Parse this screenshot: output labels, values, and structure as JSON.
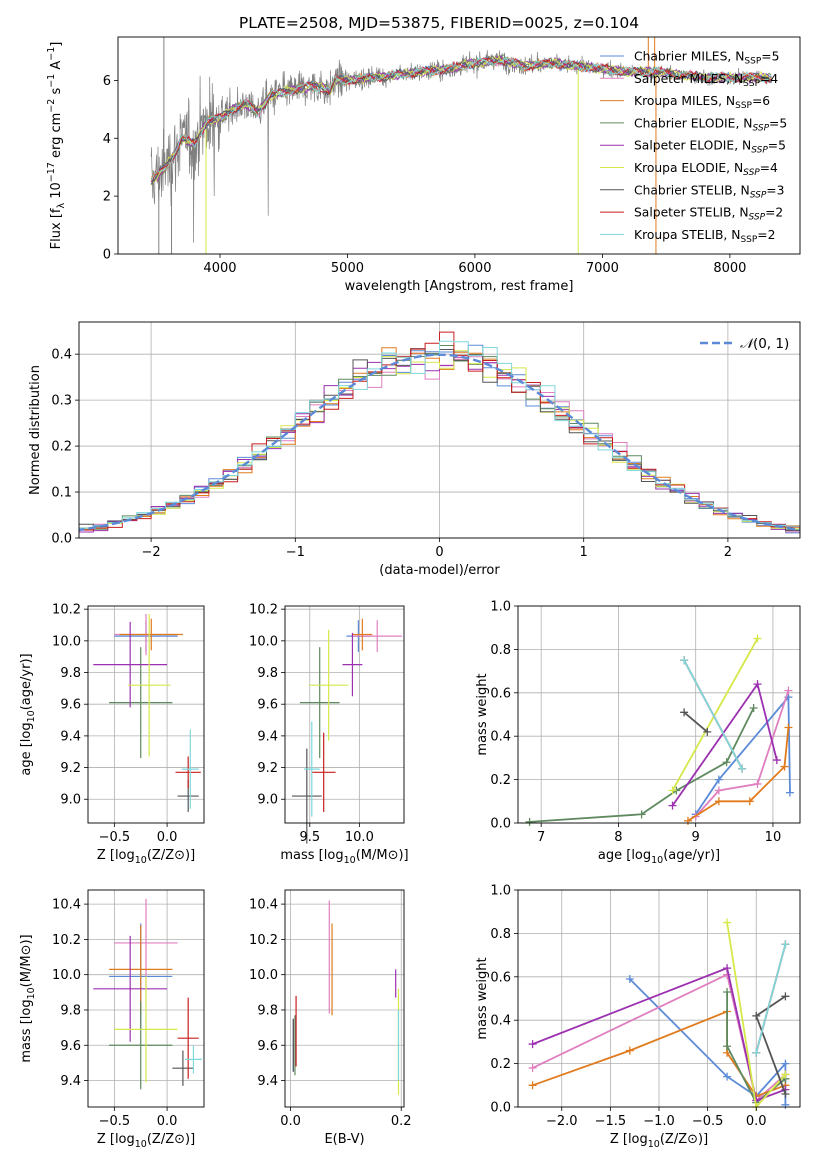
{
  "colors": {
    "chabrier_miles": "#5b8bd6",
    "salpeter_miles": "#e07fc0",
    "kroupa_miles": "#e07b1e",
    "chabrier_elodie": "#5f8a5f",
    "salpeter_elodie": "#9b30b0",
    "kroupa_elodie": "#d6e84a",
    "chabrier_stelib": "#555555",
    "salpeter_stelib": "#c81e1e",
    "kroupa_stelib": "#7fd8dc",
    "data": "#808080",
    "normal": "#5b8bd6"
  },
  "chart_data": [
    {
      "id": "spectrum",
      "type": "line",
      "title": "PLATE=2508, MJD=53875, FIBERID=0025, z=0.104",
      "xlabel": "wavelength [Angstrom, rest frame]",
      "ylabel": "Flux [f_λ 10^-17 erg cm^-2 s^-1 A^-1]",
      "xlim": [
        3200,
        8550
      ],
      "ylim": [
        0,
        7.5
      ],
      "xticks": [
        4000,
        5000,
        6000,
        7000,
        8000
      ],
      "yticks": [
        0,
        2,
        4,
        6
      ],
      "grid": false,
      "legend_position": "top-right",
      "continuum_points": [
        [
          3460,
          2.5
        ],
        [
          3550,
          2.9
        ],
        [
          3650,
          3.5
        ],
        [
          3700,
          4.0
        ],
        [
          3800,
          3.8
        ],
        [
          3900,
          4.6
        ],
        [
          4000,
          4.7
        ],
        [
          4100,
          5.0
        ],
        [
          4200,
          5.2
        ],
        [
          4300,
          4.9
        ],
        [
          4400,
          5.5
        ],
        [
          4500,
          5.6
        ],
        [
          4600,
          5.7
        ],
        [
          4700,
          5.8
        ],
        [
          4800,
          5.8
        ],
        [
          4860,
          5.6
        ],
        [
          4900,
          6.0
        ],
        [
          5000,
          6.0
        ],
        [
          5200,
          6.1
        ],
        [
          5400,
          6.2
        ],
        [
          5600,
          6.3
        ],
        [
          5800,
          6.4
        ],
        [
          6000,
          6.6
        ],
        [
          6200,
          6.7
        ],
        [
          6400,
          6.5
        ],
        [
          6600,
          6.6
        ],
        [
          6800,
          6.5
        ],
        [
          7000,
          6.4
        ],
        [
          7200,
          6.3
        ],
        [
          7400,
          6.3
        ],
        [
          7600,
          6.2
        ],
        [
          7800,
          6.1
        ],
        [
          8000,
          6.1
        ],
        [
          8300,
          6.1
        ]
      ],
      "legend": [
        {
          "sed": "Chabrier MILES",
          "nssp": "=5",
          "key": "chabrier_miles"
        },
        {
          "sed": "Salpeter MILES",
          "nssp": "=4",
          "key": "salpeter_miles"
        },
        {
          "sed": "Kroupa MILES",
          "nssp": "=6",
          "key": "kroupa_miles"
        },
        {
          "sed": "Chabrier ELODIE",
          "nssp": "=5",
          "key": "chabrier_elodie"
        },
        {
          "sed": "Salpeter ELODIE",
          "nssp": "=5",
          "key": "salpeter_elodie"
        },
        {
          "sed": "Kroupa ELODIE",
          "nssp": "=4",
          "key": "kroupa_elodie"
        },
        {
          "sed": "Chabrier STELIB",
          "nssp": "=3",
          "key": "chabrier_stelib"
        },
        {
          "sed": "Salpeter STELIB",
          "nssp": "=2",
          "key": "salpeter_stelib"
        },
        {
          "sed": "Kroupa STELIB",
          "nssp": "=2",
          "key": "kroupa_stelib"
        }
      ]
    },
    {
      "id": "residuals",
      "type": "histogram",
      "xlabel": "(data-model)/error",
      "ylabel": "Normed distribution",
      "xlim": [
        -2.5,
        2.5
      ],
      "ylim": [
        0,
        0.47
      ],
      "xticks": [
        -2,
        -1,
        0,
        1,
        2
      ],
      "yticks": [
        0.0,
        0.1,
        0.2,
        0.3,
        0.4
      ],
      "grid": true,
      "legend": "N(0,1)",
      "legend_position": "top-right",
      "bin_width": 0.1
    },
    {
      "id": "age_vs_z",
      "type": "errorbar",
      "xlabel": "Z [log10(Z/Z⊙)]",
      "ylabel": "age  [log10(age/yr)]",
      "xlim": [
        -0.75,
        0.35
      ],
      "ylim": [
        8.85,
        10.22
      ],
      "xticks": [
        -0.5,
        0.0
      ],
      "yticks": [
        9.0,
        9.2,
        9.4,
        9.6,
        9.8,
        10.0,
        10.2
      ],
      "grid": true,
      "points": [
        {
          "key": "chabrier_miles",
          "x": -0.2,
          "y": 10.03,
          "xerr": 0.3,
          "yerr": 0.1
        },
        {
          "key": "salpeter_miles",
          "x": -0.2,
          "y": 10.04,
          "xerr": 0.3,
          "yerr": 0.13
        },
        {
          "key": "kroupa_miles",
          "x": -0.15,
          "y": 10.04,
          "xerr": 0.3,
          "yerr": 0.1
        },
        {
          "key": "chabrier_elodie",
          "x": -0.25,
          "y": 9.61,
          "xerr": 0.3,
          "yerr": 0.35
        },
        {
          "key": "salpeter_elodie",
          "x": -0.35,
          "y": 9.85,
          "xerr": 0.35,
          "yerr": 0.27
        },
        {
          "key": "kroupa_elodie",
          "x": -0.17,
          "y": 9.72,
          "xerr": 0.2,
          "yerr": 0.45
        },
        {
          "key": "chabrier_stelib",
          "x": 0.2,
          "y": 9.02,
          "xerr": 0.1,
          "yerr": 0.1
        },
        {
          "key": "salpeter_stelib",
          "x": 0.2,
          "y": 9.17,
          "xerr": 0.12,
          "yerr": 0.1
        },
        {
          "key": "kroupa_stelib",
          "x": 0.22,
          "y": 9.19,
          "xerr": 0.08,
          "yerr": 0.25
        }
      ]
    },
    {
      "id": "age_vs_mass",
      "type": "errorbar",
      "xlabel": "mass [log10(M/M⊙)]",
      "ylabel": "",
      "xlim": [
        9.25,
        10.45
      ],
      "ylim": [
        8.85,
        10.22
      ],
      "xticks": [
        9.5,
        10.0
      ],
      "yticks": [
        9.0,
        9.2,
        9.4,
        9.6,
        9.8,
        10.0,
        10.2
      ],
      "grid": true,
      "points": [
        {
          "key": "chabrier_miles",
          "x": 9.99,
          "y": 10.03,
          "xerr": 0.12,
          "yerr": 0.1
        },
        {
          "key": "salpeter_miles",
          "x": 10.18,
          "y": 10.03,
          "xerr": 0.25,
          "yerr": 0.1
        },
        {
          "key": "kroupa_miles",
          "x": 10.03,
          "y": 10.04,
          "xerr": 0.1,
          "yerr": 0.1
        },
        {
          "key": "chabrier_elodie",
          "x": 9.6,
          "y": 9.61,
          "xerr": 0.2,
          "yerr": 0.35
        },
        {
          "key": "salpeter_elodie",
          "x": 9.93,
          "y": 9.85,
          "xerr": 0.1,
          "yerr": 0.2
        },
        {
          "key": "kroupa_elodie",
          "x": 9.69,
          "y": 9.72,
          "xerr": 0.2,
          "yerr": 0.35
        },
        {
          "key": "chabrier_stelib",
          "x": 9.47,
          "y": 9.02,
          "xerr": 0.15,
          "yerr": 0.3
        },
        {
          "key": "salpeter_stelib",
          "x": 9.64,
          "y": 9.17,
          "xerr": 0.12,
          "yerr": 0.25
        },
        {
          "key": "kroupa_stelib",
          "x": 9.52,
          "y": 9.19,
          "xerr": 0.08,
          "yerr": 0.3
        }
      ]
    },
    {
      "id": "weight_vs_age",
      "type": "line",
      "xlabel": "age  [log10(age/yr)]",
      "ylabel": "mass weight",
      "xlim": [
        6.7,
        10.35
      ],
      "ylim": [
        0.0,
        1.0
      ],
      "xticks": [
        7,
        8,
        9,
        10
      ],
      "yticks": [
        0.0,
        0.2,
        0.4,
        0.6,
        0.8,
        1.0
      ],
      "grid": true,
      "series": [
        {
          "key": "chabrier_miles",
          "x": [
            9.0,
            9.3,
            10.2,
            10.22
          ],
          "y": [
            0.04,
            0.2,
            0.58,
            0.14
          ]
        },
        {
          "key": "salpeter_miles",
          "x": [
            9.0,
            9.3,
            9.8,
            10.2
          ],
          "y": [
            0.03,
            0.15,
            0.18,
            0.61
          ]
        },
        {
          "key": "kroupa_miles",
          "x": [
            8.9,
            9.3,
            9.7,
            10.15,
            10.2
          ],
          "y": [
            0.01,
            0.1,
            0.1,
            0.26,
            0.44
          ]
        },
        {
          "key": "chabrier_elodie",
          "x": [
            6.85,
            8.3,
            8.75,
            9.4,
            9.75
          ],
          "y": [
            0.005,
            0.04,
            0.15,
            0.28,
            0.53
          ]
        },
        {
          "key": "salpeter_elodie",
          "x": [
            8.7,
            9.8,
            10.05
          ],
          "y": [
            0.08,
            0.64,
            0.29
          ]
        },
        {
          "key": "kroupa_elodie",
          "x": [
            8.7,
            9.8
          ],
          "y": [
            0.15,
            0.85
          ]
        },
        {
          "key": "chabrier_stelib",
          "x": [
            8.85,
            9.15
          ],
          "y": [
            0.51,
            0.42
          ]
        },
        {
          "key": "salpeter_stelib",
          "x": [
            8.85,
            9.6
          ],
          "y": [
            0.75,
            0.25
          ]
        },
        {
          "key": "kroupa_stelib",
          "x": [
            8.85,
            9.6
          ],
          "y": [
            0.75,
            0.25
          ]
        }
      ]
    },
    {
      "id": "mass_vs_z",
      "type": "errorbar",
      "xlabel": "Z [log10(Z/Z⊙)]",
      "ylabel": "mass [log10(M/M⊙)]",
      "xlim": [
        -0.75,
        0.35
      ],
      "ylim": [
        9.25,
        10.48
      ],
      "xticks": [
        -0.5,
        0.0
      ],
      "yticks": [
        9.4,
        9.6,
        9.8,
        10.0,
        10.2,
        10.4
      ],
      "grid": true,
      "points": [
        {
          "key": "chabrier_miles",
          "x": -0.25,
          "y": 9.99,
          "xerr": 0.3,
          "yerr": 0.3
        },
        {
          "key": "salpeter_miles",
          "x": -0.2,
          "y": 10.18,
          "xerr": 0.3,
          "yerr": 0.25
        },
        {
          "key": "kroupa_miles",
          "x": -0.25,
          "y": 10.03,
          "xerr": 0.3,
          "yerr": 0.25
        },
        {
          "key": "chabrier_elodie",
          "x": -0.25,
          "y": 9.6,
          "xerr": 0.3,
          "yerr": 0.25
        },
        {
          "key": "salpeter_elodie",
          "x": -0.35,
          "y": 9.92,
          "xerr": 0.35,
          "yerr": 0.3
        },
        {
          "key": "kroupa_elodie",
          "x": -0.2,
          "y": 9.69,
          "xerr": 0.3,
          "yerr": 0.3
        },
        {
          "key": "chabrier_stelib",
          "x": 0.15,
          "y": 9.47,
          "xerr": 0.1,
          "yerr": 0.1
        },
        {
          "key": "salpeter_stelib",
          "x": 0.2,
          "y": 9.64,
          "xerr": 0.1,
          "yerr": 0.23
        },
        {
          "key": "kroupa_stelib",
          "x": 0.25,
          "y": 9.52,
          "xerr": 0.08,
          "yerr": 0.08
        }
      ]
    },
    {
      "id": "mass_vs_ebv",
      "type": "errorbar",
      "xlabel": "E(B-V)",
      "ylabel": "",
      "xlim": [
        -0.01,
        0.205
      ],
      "ylim": [
        9.25,
        10.48
      ],
      "xticks": [
        0.0,
        0.2
      ],
      "yticks": [
        9.4,
        9.6,
        9.8,
        10.0,
        10.2,
        10.4
      ],
      "grid": true,
      "points": [
        {
          "key": "chabrier_miles",
          "x": 0.005,
          "y": 9.6,
          "xerr": 0,
          "yerr": 0.15
        },
        {
          "key": "salpeter_miles",
          "x": 0.07,
          "y": 10.1,
          "xerr": 0,
          "yerr": 0.32
        },
        {
          "key": "kroupa_miles",
          "x": 0.075,
          "y": 10.03,
          "xerr": 0,
          "yerr": 0.26
        },
        {
          "key": "chabrier_elodie",
          "x": 0.008,
          "y": 9.6,
          "xerr": 0,
          "yerr": 0.17
        },
        {
          "key": "salpeter_elodie",
          "x": 0.19,
          "y": 9.95,
          "xerr": 0,
          "yerr": 0.08
        },
        {
          "key": "kroupa_elodie",
          "x": 0.195,
          "y": 9.62,
          "xerr": 0,
          "yerr": 0.3
        },
        {
          "key": "chabrier_stelib",
          "x": 0.005,
          "y": 9.6,
          "xerr": 0,
          "yerr": 0.15
        },
        {
          "key": "salpeter_stelib",
          "x": 0.01,
          "y": 9.68,
          "xerr": 0,
          "yerr": 0.2
        },
        {
          "key": "kroupa_stelib",
          "x": 0.195,
          "y": 9.6,
          "xerr": 0,
          "yerr": 0.2
        }
      ]
    },
    {
      "id": "weight_vs_z",
      "type": "line",
      "xlabel": "Z [log10(Z/Z⊙)]",
      "ylabel": "mass weight",
      "xlim": [
        -2.45,
        0.45
      ],
      "ylim": [
        0.0,
        1.0
      ],
      "xticks": [
        -2.0,
        -1.5,
        -1.0,
        -0.5,
        0.0
      ],
      "yticks": [
        0.0,
        0.2,
        0.4,
        0.6,
        0.8,
        1.0
      ],
      "grid": true,
      "series": [
        {
          "key": "chabrier_miles",
          "x": [
            -1.3,
            -0.3,
            0.0,
            0.3,
            0.3
          ],
          "y": [
            0.59,
            0.14,
            0.05,
            0.2,
            0.01
          ]
        },
        {
          "key": "salpeter_miles",
          "x": [
            -2.3,
            -0.3,
            0.0,
            0.3
          ],
          "y": [
            0.18,
            0.61,
            0.03,
            0.15
          ]
        },
        {
          "key": "kroupa_miles",
          "x": [
            -2.3,
            -1.3,
            -0.3,
            -0.3,
            0.0,
            0.3
          ],
          "y": [
            0.1,
            0.26,
            0.44,
            0.25,
            0.05,
            0.1
          ]
        },
        {
          "key": "chabrier_elodie",
          "x": [
            -0.3,
            -0.3,
            0.0,
            0.3
          ],
          "y": [
            0.53,
            0.28,
            0.02,
            0.13
          ]
        },
        {
          "key": "salpeter_elodie",
          "x": [
            -2.3,
            -0.3,
            0.0,
            0.3
          ],
          "y": [
            0.29,
            0.64,
            0.03,
            0.08
          ]
        },
        {
          "key": "kroupa_elodie",
          "x": [
            -0.3,
            0.0,
            0.3
          ],
          "y": [
            0.85,
            0.0,
            0.15
          ]
        },
        {
          "key": "chabrier_stelib",
          "x": [
            0.3,
            0.0,
            0.3
          ],
          "y": [
            0.51,
            0.42,
            0.06
          ]
        },
        {
          "key": "salpeter_stelib",
          "x": [
            0.0,
            0.3
          ],
          "y": [
            0.25,
            0.75
          ]
        },
        {
          "key": "kroupa_stelib",
          "x": [
            0.0,
            0.3
          ],
          "y": [
            0.25,
            0.75
          ]
        }
      ]
    }
  ]
}
